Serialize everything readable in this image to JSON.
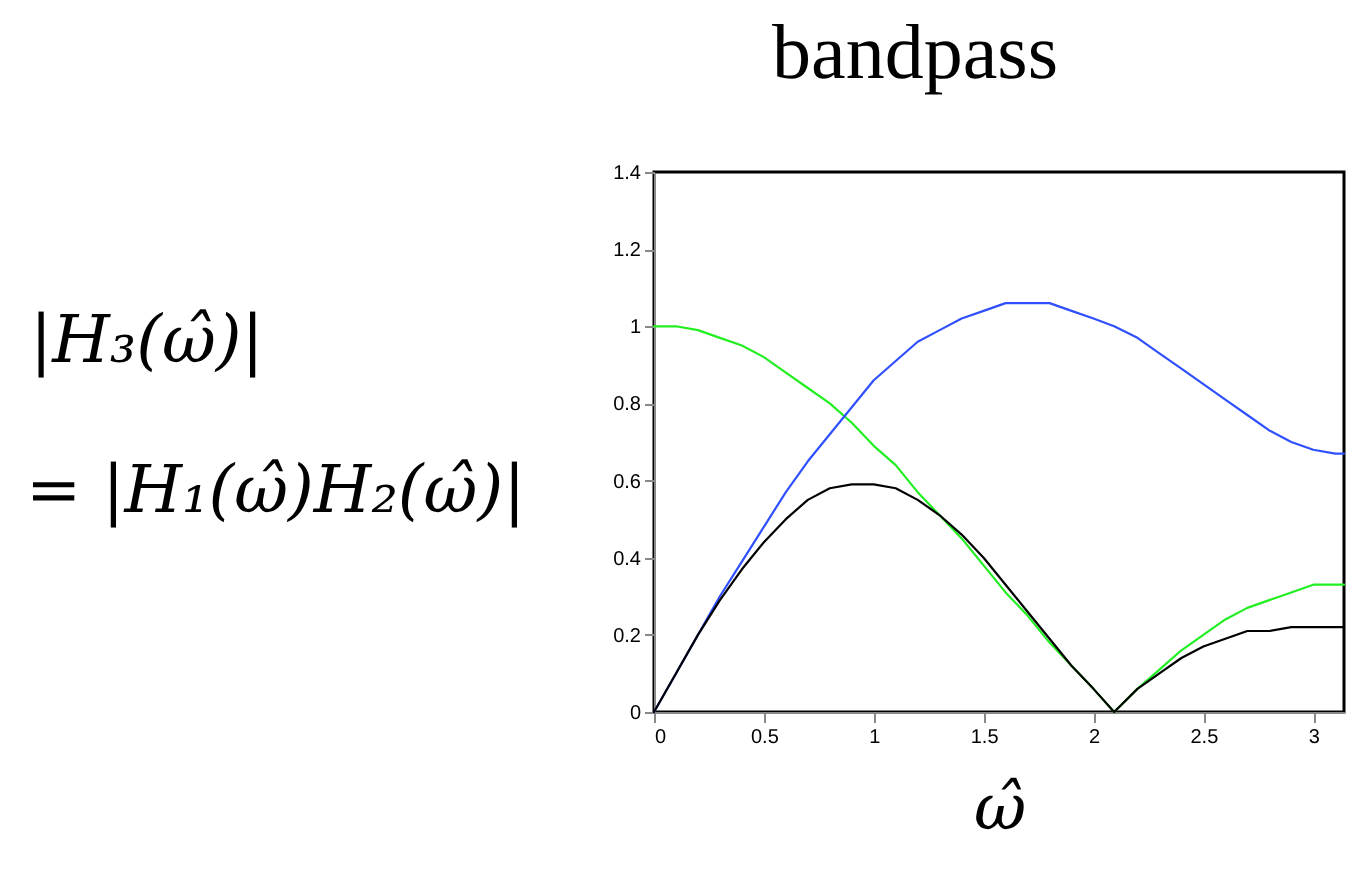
{
  "chart_data": {
    "type": "line",
    "title": "bandpass",
    "xlabel": "ω̂",
    "annotations": [
      "|H₃(ω̂)|",
      "= |H₁(ω̂)H₂(ω̂)|"
    ],
    "x": [
      0,
      0.1,
      0.2,
      0.3,
      0.4,
      0.5,
      0.6,
      0.7,
      0.8,
      0.9,
      1.0,
      1.1,
      1.2,
      1.3,
      1.4,
      1.5,
      1.6,
      1.7,
      1.8,
      1.9,
      2.0,
      2.094,
      2.2,
      2.3,
      2.4,
      2.5,
      2.6,
      2.7,
      2.8,
      2.9,
      3.0,
      3.1,
      3.14
    ],
    "series": [
      {
        "color": "#22ee22",
        "values": [
          1.0,
          1.0,
          0.99,
          0.97,
          0.95,
          0.92,
          0.88,
          0.84,
          0.8,
          0.75,
          0.69,
          0.64,
          0.57,
          0.51,
          0.45,
          0.38,
          0.31,
          0.25,
          0.18,
          0.12,
          0.06,
          0.0,
          0.06,
          0.11,
          0.16,
          0.2,
          0.24,
          0.27,
          0.29,
          0.31,
          0.33,
          0.33,
          0.33
        ]
      },
      {
        "color": "#3050ff",
        "values": [
          0.0,
          0.1,
          0.2,
          0.3,
          0.39,
          0.48,
          0.57,
          0.65,
          0.72,
          0.79,
          0.86,
          0.91,
          0.96,
          0.99,
          1.02,
          1.04,
          1.06,
          1.06,
          1.06,
          1.04,
          1.02,
          1.0,
          0.97,
          0.93,
          0.89,
          0.85,
          0.81,
          0.77,
          0.73,
          0.7,
          0.68,
          0.67,
          0.67
        ]
      },
      {
        "color": "#000000",
        "values": [
          0.0,
          0.1,
          0.2,
          0.29,
          0.37,
          0.44,
          0.5,
          0.55,
          0.58,
          0.59,
          0.59,
          0.58,
          0.55,
          0.51,
          0.46,
          0.4,
          0.33,
          0.26,
          0.19,
          0.12,
          0.06,
          0.0,
          0.06,
          0.1,
          0.14,
          0.17,
          0.19,
          0.21,
          0.21,
          0.22,
          0.22,
          0.22,
          0.22
        ]
      }
    ],
    "xlim": [
      0,
      3.14
    ],
    "ylim": [
      0,
      1.4
    ],
    "xticks": [
      0,
      0.5,
      1,
      1.5,
      2,
      2.5,
      3
    ],
    "yticks": [
      0,
      0.2,
      0.4,
      0.6,
      0.8,
      1,
      1.2,
      1.4
    ],
    "line_style": "solid"
  }
}
